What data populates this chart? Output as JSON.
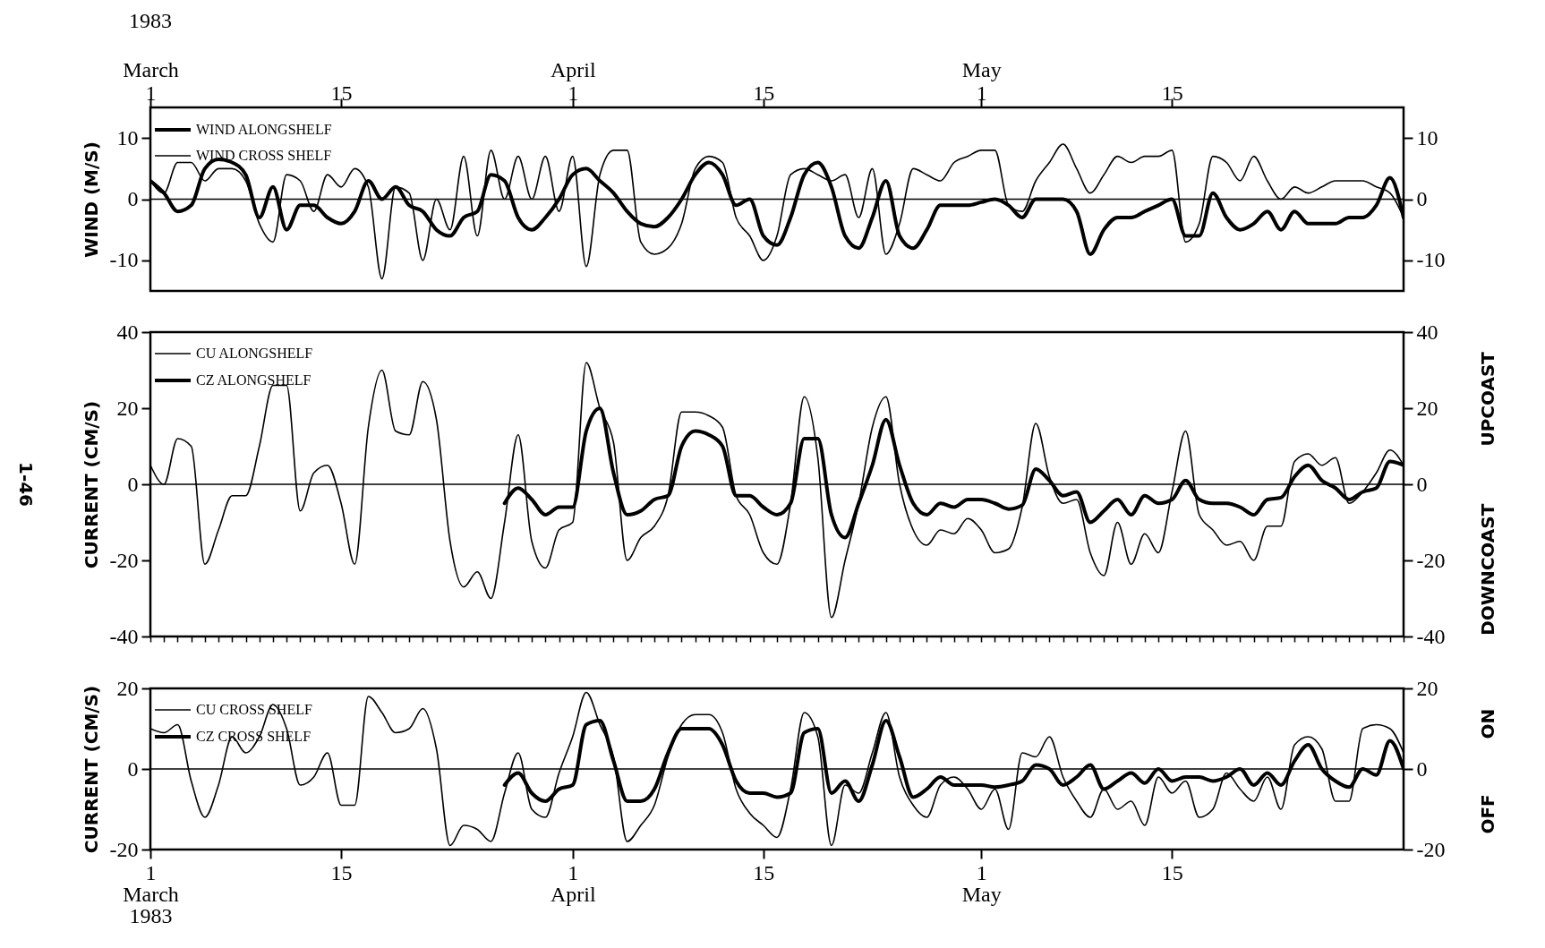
{
  "chart_data": [
    {
      "type": "line",
      "ylabel": "WIND (M/S)",
      "xlim": [
        "1983-03-01",
        "1983-06-01"
      ],
      "ylim": [
        -15,
        15
      ],
      "y2lim": [
        -15,
        15
      ],
      "xticks": [
        {
          "value": "1983-03-01",
          "label": "1"
        },
        {
          "value": "1983-03-15",
          "label": "15"
        },
        {
          "value": "1983-04-01",
          "label": "1"
        },
        {
          "value": "1983-04-15",
          "label": "15"
        },
        {
          "value": "1983-05-01",
          "label": "1"
        },
        {
          "value": "1983-05-15",
          "label": "15"
        }
      ],
      "x2lim": [
        "1983-03-01",
        "1983-06-01"
      ],
      "x2ticks": [
        {
          "value": "1983-03-01",
          "label": "March"
        },
        {
          "value": "1983-04-01",
          "label": "April"
        },
        {
          "value": "1983-05-01",
          "label": "May"
        }
      ],
      "annotations": [
        "1983"
      ],
      "yticks": [
        -10,
        0,
        10
      ],
      "y2ticks": [
        -10,
        0,
        10
      ],
      "legend": "top left",
      "grid": false,
      "ref_lines": [
        {
          "axis": "y",
          "value": 0
        }
      ],
      "x": [
        "1983-03-01",
        "1983-03-02",
        "1983-03-03",
        "1983-03-04",
        "1983-03-05",
        "1983-03-06",
        "1983-03-07",
        "1983-03-08",
        "1983-03-09",
        "1983-03-10",
        "1983-03-11",
        "1983-03-12",
        "1983-03-13",
        "1983-03-14",
        "1983-03-15",
        "1983-03-16",
        "1983-03-17",
        "1983-03-18",
        "1983-03-19",
        "1983-03-20",
        "1983-03-21",
        "1983-03-22",
        "1983-03-23",
        "1983-03-24",
        "1983-03-25",
        "1983-03-26",
        "1983-03-27",
        "1983-03-28",
        "1983-03-29",
        "1983-03-30",
        "1983-03-31",
        "1983-04-01",
        "1983-04-02",
        "1983-04-03",
        "1983-04-04",
        "1983-04-05",
        "1983-04-06",
        "1983-04-07",
        "1983-04-08",
        "1983-04-09",
        "1983-04-10",
        "1983-04-11",
        "1983-04-12",
        "1983-04-13",
        "1983-04-14",
        "1983-04-15",
        "1983-04-16",
        "1983-04-17",
        "1983-04-18",
        "1983-04-19",
        "1983-04-20",
        "1983-04-21",
        "1983-04-22",
        "1983-04-23",
        "1983-04-24",
        "1983-04-25",
        "1983-04-26",
        "1983-04-27",
        "1983-04-28",
        "1983-04-29",
        "1983-04-30",
        "1983-05-01",
        "1983-05-02",
        "1983-05-03",
        "1983-05-04",
        "1983-05-05",
        "1983-05-06",
        "1983-05-07",
        "1983-05-08",
        "1983-05-09",
        "1983-05-10",
        "1983-05-11",
        "1983-05-12",
        "1983-05-13",
        "1983-05-14",
        "1983-05-15",
        "1983-05-16",
        "1983-05-17",
        "1983-05-18",
        "1983-05-19",
        "1983-05-20",
        "1983-05-21",
        "1983-05-22",
        "1983-05-23",
        "1983-05-24",
        "1983-05-25",
        "1983-05-26",
        "1983-05-27",
        "1983-05-28",
        "1983-05-29",
        "1983-05-30",
        "1983-05-31",
        "1983-06-01"
      ],
      "series": [
        {
          "name": "WIND ALONGSHELF",
          "color": "#000000",
          "values": [
            3,
            1,
            -2,
            -1,
            5,
            6.5,
            6,
            4,
            -3,
            2,
            -5,
            -1,
            -1,
            -3,
            -4,
            -2,
            3,
            0,
            2,
            -1,
            -2,
            -5,
            -6,
            -3,
            -2,
            4,
            3,
            -3,
            -5,
            -3,
            0,
            4,
            5,
            3,
            1,
            -2,
            -4,
            -4.5,
            -3,
            0,
            4,
            6,
            4,
            -1,
            0,
            -6,
            -7.5,
            -3,
            4,
            6,
            2,
            -6,
            -8,
            -3,
            3,
            -6,
            -8,
            -5,
            -1,
            -1,
            -1,
            -0.5,
            0,
            -1,
            -3,
            0,
            0,
            0,
            -2,
            -9,
            -5,
            -3,
            -3,
            -2,
            -1,
            0,
            -6,
            -6,
            1,
            -3,
            -5,
            -4,
            -2,
            -5,
            -2,
            -4,
            -4,
            -4,
            -3,
            -3,
            -1,
            3.5,
            -3
          ]
        },
        {
          "name": "WIND CROSS SHELF",
          "color": "#000000",
          "values": [
            3,
            1,
            6,
            6,
            3,
            5,
            5,
            3,
            -4,
            -7,
            4,
            3,
            -2,
            4,
            2,
            5,
            2,
            -13,
            2,
            1,
            -10,
            0,
            -5,
            7,
            -6,
            8,
            0,
            7,
            0,
            7,
            -2,
            7,
            -11,
            4,
            8,
            8,
            -7,
            -9,
            -8,
            -4,
            5,
            7,
            6,
            -3,
            -6,
            -10,
            -6,
            4,
            5,
            4,
            3,
            4,
            -3,
            5,
            -9,
            -4,
            5,
            4,
            3,
            6,
            7,
            8,
            8,
            -1,
            -2,
            3,
            6,
            9,
            5,
            1,
            4,
            7,
            6,
            7,
            7,
            8,
            -7,
            -4,
            7,
            6,
            3,
            7,
            3,
            0,
            2,
            1,
            2,
            3,
            3,
            3,
            2,
            1,
            -3
          ]
        }
      ]
    },
    {
      "type": "line",
      "ylabel": "CURRENT (CM/S)",
      "ylim": [
        -40,
        40
      ],
      "y2lim": [
        -40,
        40
      ],
      "yticks": [
        -40,
        -20,
        0,
        20,
        40
      ],
      "y2ticks": [
        -40,
        -20,
        0,
        20,
        40
      ],
      "tick_labels": [
        "y",
        "y2"
      ],
      "legend": "top left",
      "grid": false,
      "ref_lines": [
        {
          "axis": "y",
          "value": 0
        }
      ],
      "annotations": [
        "UPCOAST",
        "DOWNCOAST",
        "1-46"
      ],
      "categories": [
        null,
        null,
        null,
        null,
        null,
        null,
        null,
        null,
        null,
        null,
        null,
        null,
        null,
        null,
        null,
        null,
        null,
        null,
        null,
        null,
        null,
        null,
        null,
        null,
        null,
        null,
        null,
        null,
        null,
        null,
        null,
        null,
        null,
        null,
        null,
        null,
        null,
        null,
        null,
        null,
        null,
        null,
        null,
        null,
        null,
        null,
        null,
        null,
        null,
        null,
        null,
        null,
        null,
        null,
        null,
        null,
        null,
        null,
        null,
        null,
        null,
        null,
        null,
        null,
        null,
        null,
        null,
        null,
        null,
        null,
        null,
        null,
        null,
        null,
        null,
        null,
        null,
        null,
        null,
        null,
        null,
        null,
        null,
        null,
        null,
        null,
        null,
        null,
        null,
        null,
        null,
        null,
        null
      ],
      "series": [
        {
          "name": "CU ALONGSHELF",
          "color": "#000000",
          "values": [
            5,
            0,
            12,
            10,
            -21,
            -12,
            -3,
            -3,
            10,
            26,
            26,
            -7,
            3,
            5,
            -5,
            -21,
            15,
            30,
            14,
            13,
            27,
            17,
            -15,
            -27,
            -23,
            -30,
            -10,
            13,
            -15,
            -22,
            -12,
            -10,
            32,
            20,
            11,
            -20,
            -14,
            -11,
            -3,
            19,
            19,
            18,
            15,
            -3,
            -8,
            -18,
            -21,
            -5,
            23,
            7,
            -35,
            -20,
            -5,
            15,
            23,
            0,
            -12,
            -16,
            -12,
            -13,
            -9,
            -12,
            -18,
            -17,
            -6,
            16,
            2,
            -5,
            -4,
            -18,
            -24,
            -10,
            -21,
            -13,
            -18,
            -2,
            14,
            -8,
            -12,
            -16,
            -15,
            -20,
            -11,
            -11,
            6,
            8,
            5,
            7,
            -5,
            -2,
            3,
            9,
            5
          ]
        },
        {
          "name": "CZ ALONGSHELF",
          "color": "#000000",
          "values": [
            null,
            null,
            null,
            null,
            null,
            null,
            null,
            null,
            null,
            null,
            null,
            null,
            null,
            null,
            null,
            null,
            null,
            null,
            null,
            null,
            null,
            null,
            null,
            null,
            null,
            null,
            -5,
            -1,
            -4,
            -8,
            -6,
            -6,
            14,
            20,
            3,
            -8,
            -7,
            -4,
            -3,
            10,
            14,
            13,
            10,
            -3,
            -3,
            -6,
            -8,
            -5,
            12,
            12,
            -8,
            -14,
            -5,
            5,
            17,
            5,
            -5,
            -8,
            -5,
            -6,
            -4,
            -4,
            -5,
            -6.5,
            -5.5,
            4,
            1,
            -3,
            -2,
            -10,
            -7,
            -4,
            -8,
            -3,
            -5,
            -4,
            1,
            -4,
            -5,
            -5,
            -6,
            -8,
            -4,
            -3.5,
            2,
            5,
            1,
            -1,
            -4,
            -2,
            -1,
            6,
            5
          ]
        }
      ]
    },
    {
      "type": "line",
      "ylabel": "CURRENT (CM/S)",
      "xlim": [
        "1983-03-01",
        "1983-06-01"
      ],
      "ylim": [
        -20,
        20
      ],
      "y2lim": [
        -20,
        20
      ],
      "xticks": [
        {
          "value": "1983-03-01",
          "label": "1\nMarch\n1983"
        },
        {
          "value": "1983-03-15",
          "label": "15"
        },
        {
          "value": "1983-04-01",
          "label": "1\nApril"
        },
        {
          "value": "1983-04-15",
          "label": "15"
        },
        {
          "value": "1983-05-01",
          "label": "1\nMay"
        },
        {
          "value": "1983-05-15",
          "label": "15"
        }
      ],
      "yticks": [
        -20,
        0,
        20
      ],
      "y2ticks": [
        -20,
        0,
        20
      ],
      "legend": "top left",
      "grid": false,
      "ref_lines": [
        {
          "axis": "y",
          "value": 0
        }
      ],
      "annotations": [
        "ON",
        "OFF"
      ],
      "x": [
        "1983-03-01",
        "1983-03-02",
        "1983-03-03",
        "1983-03-04",
        "1983-03-05",
        "1983-03-06",
        "1983-03-07",
        "1983-03-08",
        "1983-03-09",
        "1983-03-10",
        "1983-03-11",
        "1983-03-12",
        "1983-03-13",
        "1983-03-14",
        "1983-03-15",
        "1983-03-16",
        "1983-03-17",
        "1983-03-18",
        "1983-03-19",
        "1983-03-20",
        "1983-03-21",
        "1983-03-22",
        "1983-03-23",
        "1983-03-24",
        "1983-03-25",
        "1983-03-26",
        "1983-03-27",
        "1983-03-28",
        "1983-03-29",
        "1983-03-30",
        "1983-03-31",
        "1983-04-01",
        "1983-04-02",
        "1983-04-03",
        "1983-04-04",
        "1983-04-05",
        "1983-04-06",
        "1983-04-07",
        "1983-04-08",
        "1983-04-09",
        "1983-04-10",
        "1983-04-11",
        "1983-04-12",
        "1983-04-13",
        "1983-04-14",
        "1983-04-15",
        "1983-04-16",
        "1983-04-17",
        "1983-04-18",
        "1983-04-19",
        "1983-04-20",
        "1983-04-21",
        "1983-04-22",
        "1983-04-23",
        "1983-04-24",
        "1983-04-25",
        "1983-04-26",
        "1983-04-27",
        "1983-04-28",
        "1983-04-29",
        "1983-04-30",
        "1983-05-01",
        "1983-05-02",
        "1983-05-03",
        "1983-05-04",
        "1983-05-05",
        "1983-05-06",
        "1983-05-07",
        "1983-05-08",
        "1983-05-09",
        "1983-05-10",
        "1983-05-11",
        "1983-05-12",
        "1983-05-13",
        "1983-05-14",
        "1983-05-15",
        "1983-05-16",
        "1983-05-17",
        "1983-05-18",
        "1983-05-19",
        "1983-05-20",
        "1983-05-21",
        "1983-05-22",
        "1983-05-23",
        "1983-05-24",
        "1983-05-25",
        "1983-05-26",
        "1983-05-27",
        "1983-05-28",
        "1983-05-29",
        "1983-05-30",
        "1983-05-31",
        "1983-06-01"
      ],
      "series": [
        {
          "name": "CU CROSS SHELF",
          "color": "#000000",
          "values": [
            10,
            9,
            11,
            -3,
            -12,
            -4,
            8,
            4,
            8,
            16,
            10,
            -4,
            -2,
            4,
            -9,
            -9,
            18,
            14,
            9,
            10,
            15,
            5,
            -19,
            -14,
            -15,
            -18,
            -6,
            4,
            -10,
            -12,
            -1,
            8,
            19,
            11,
            3,
            -18,
            -14,
            -9,
            3,
            11,
            13.5,
            13.5,
            9,
            -5,
            -11,
            -14,
            -17,
            -5,
            14,
            8,
            -19,
            -4,
            -6,
            4,
            14,
            -2,
            -9,
            -12,
            -4,
            -2,
            -5,
            -10,
            -5,
            -15,
            4,
            3,
            8,
            -2,
            -8,
            -12,
            -5,
            -10,
            -8,
            -14,
            -2,
            -6,
            -3,
            -12,
            -10,
            -1,
            -5,
            -8,
            -2,
            -10,
            6,
            8,
            5,
            -8,
            -8,
            10,
            11,
            10,
            4
          ]
        },
        {
          "name": "CZ CROSS SHELF",
          "color": "#000000",
          "values": [
            null,
            null,
            null,
            null,
            null,
            null,
            null,
            null,
            null,
            null,
            null,
            null,
            null,
            null,
            null,
            null,
            null,
            null,
            null,
            null,
            null,
            null,
            null,
            null,
            null,
            null,
            -4,
            -1,
            -6,
            -8,
            -5,
            -4,
            11,
            12,
            2,
            -8,
            -8,
            -5,
            4,
            10,
            10,
            10,
            6,
            -3,
            -6,
            -6,
            -7,
            -6,
            9,
            10,
            -6,
            -3,
            -8,
            1,
            12,
            3,
            -7,
            -5,
            -2,
            -4,
            -4,
            -4,
            -4.5,
            -4,
            -3,
            1,
            0,
            -4,
            -2,
            1,
            -5,
            -3,
            -1,
            -3.5,
            0,
            -3,
            -2,
            -2,
            -3,
            -2,
            0,
            -4,
            -1,
            -4,
            2,
            6,
            0,
            -3,
            -4.5,
            0,
            -1.5,
            7,
            0
          ]
        }
      ]
    }
  ]
}
